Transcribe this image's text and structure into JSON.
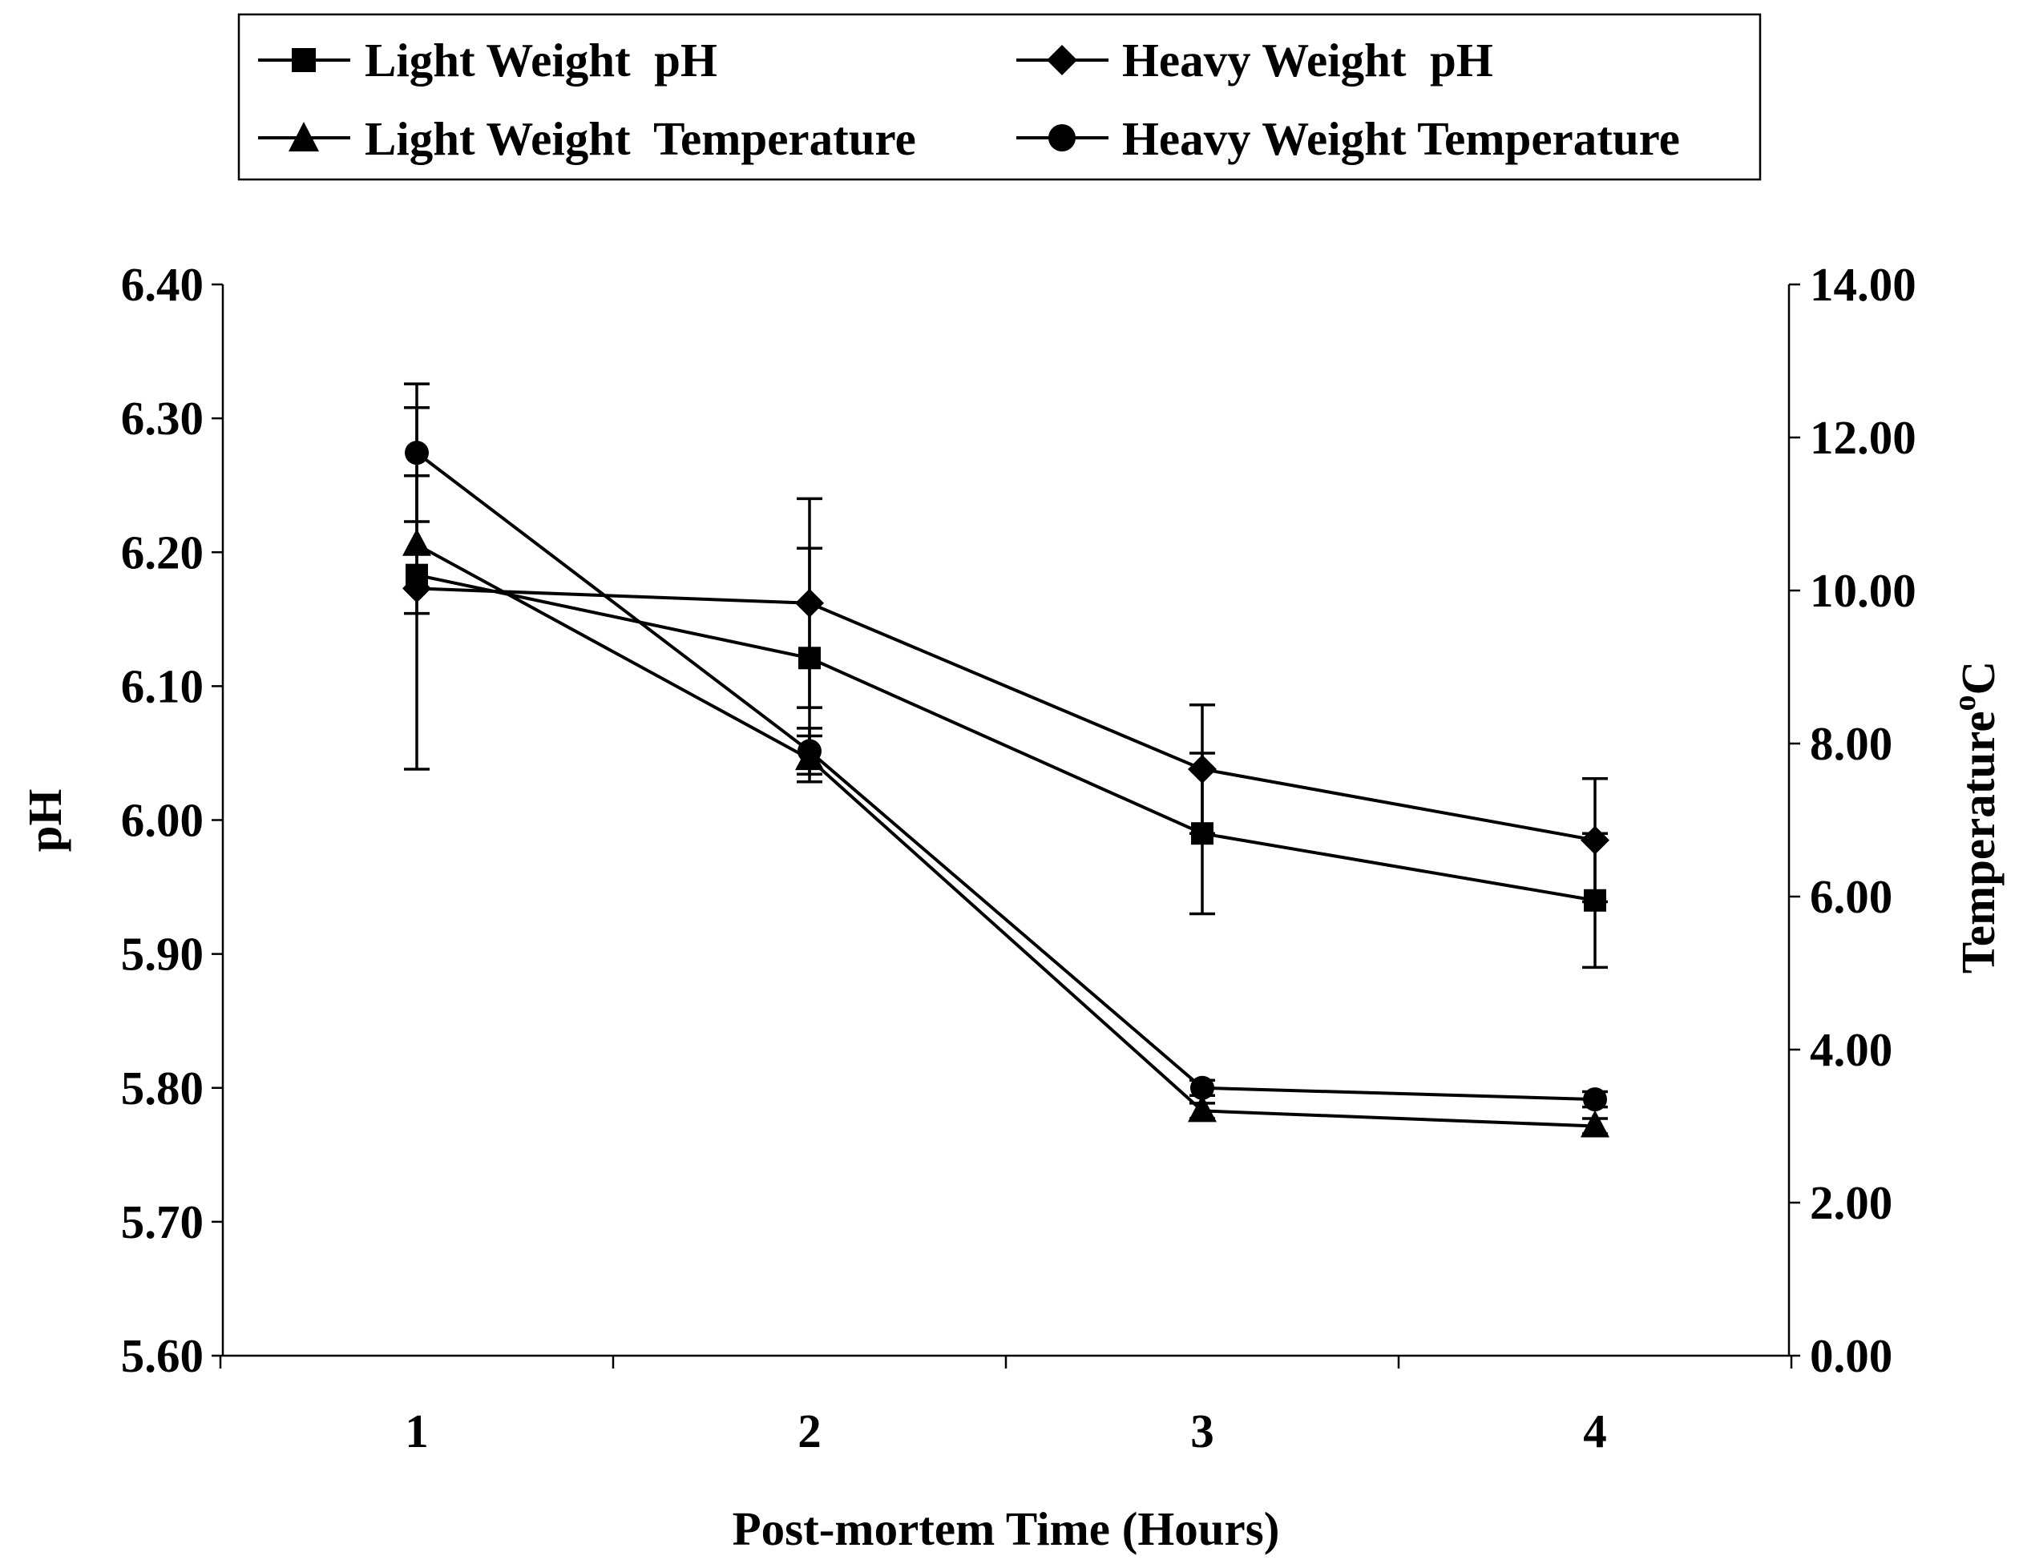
{
  "chart_data": {
    "type": "line",
    "title": "",
    "x": [
      1,
      2,
      3,
      4
    ],
    "xlabel": "Post-mortem Time (Hours)",
    "ylabel": "pH",
    "y2label": "Temperature",
    "y2label_sup": "o",
    "y2label_unit": "C",
    "ylim": [
      5.6,
      6.4
    ],
    "y2lim": [
      0,
      14
    ],
    "yticks": [
      "5.60",
      "5.70",
      "5.80",
      "5.90",
      "6.00",
      "6.10",
      "6.20",
      "6.30",
      "6.40"
    ],
    "y2ticks": [
      "0.00",
      "2.00",
      "4.00",
      "6.00",
      "8.00",
      "10.00",
      "12.00",
      "14.00"
    ],
    "xticks": [
      "1",
      "2",
      "3",
      "4"
    ],
    "legend_position": "top",
    "series": [
      {
        "name": "Light Weight  pH",
        "marker": "square",
        "axis": "left",
        "values": [
          6.183,
          6.121,
          5.99,
          5.94
        ],
        "error": [
          0.0,
          0.082,
          0.06,
          0.05
        ]
      },
      {
        "name": "Heavy Weight  pH",
        "marker": "diamond",
        "axis": "left",
        "values": [
          6.173,
          6.162,
          6.038,
          5.985
        ],
        "error": [
          0.135,
          0.078,
          0.048,
          0.046
        ]
      },
      {
        "name": "Light Weight  Temperature",
        "marker": "triangle",
        "axis": "right",
        "values": [
          10.6,
          7.8,
          3.2,
          3.0
        ],
        "error": [
          0.9,
          0.3,
          0.1,
          0.1
        ]
      },
      {
        "name": "Heavy Weight Temperature",
        "marker": "circle",
        "axis": "right",
        "values": [
          11.8,
          7.9,
          3.5,
          3.35
        ],
        "error": [
          0.9,
          0.3,
          0.1,
          0.1
        ]
      }
    ]
  }
}
